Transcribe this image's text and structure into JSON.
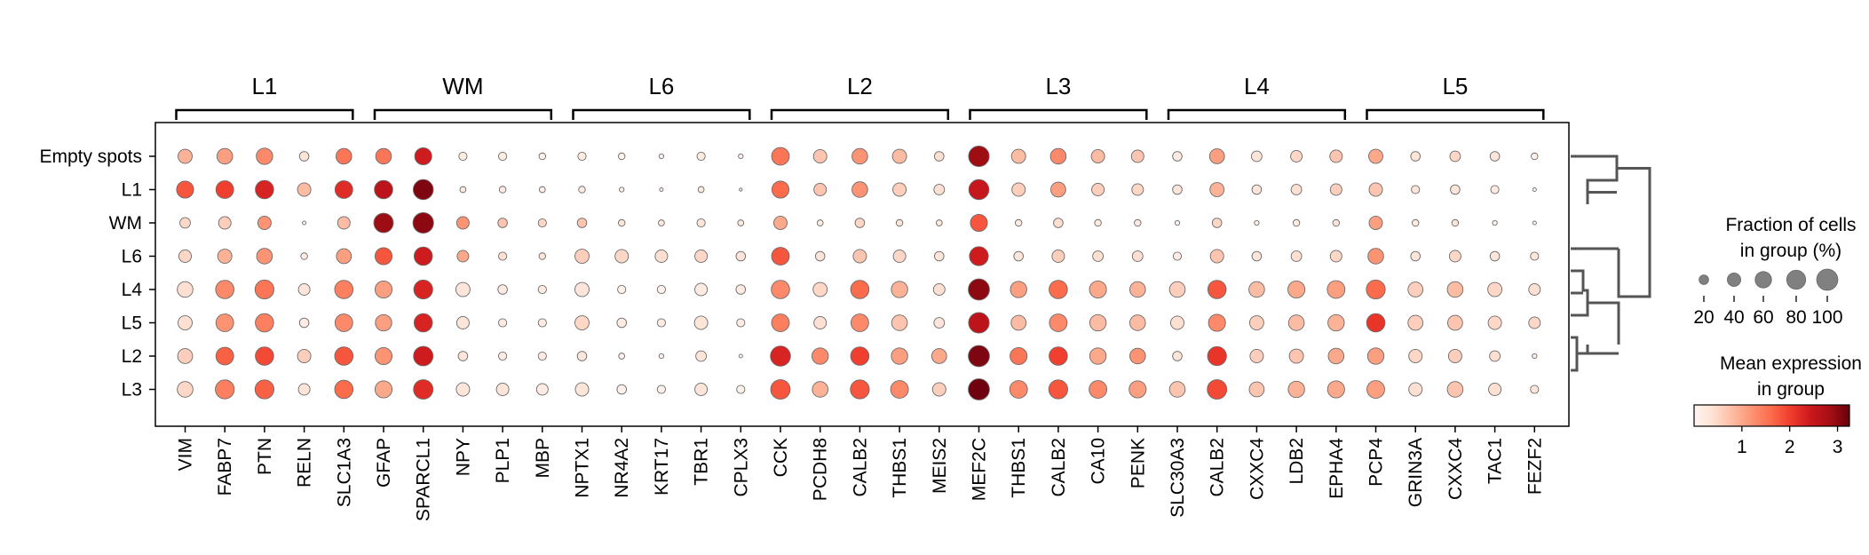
{
  "chart_data": {
    "type": "dotplot",
    "rows": [
      "Empty spots",
      "L1",
      "WM",
      "L6",
      "L4",
      "L5",
      "L2",
      "L3"
    ],
    "gene_groups": [
      {
        "label": "L1",
        "genes": [
          "VIM",
          "FABP7",
          "PTN",
          "RELN",
          "SLC1A3"
        ]
      },
      {
        "label": "WM",
        "genes": [
          "GFAP",
          "SPARCL1",
          "NPY",
          "PLP1",
          "MBP"
        ]
      },
      {
        "label": "L6",
        "genes": [
          "NPTX1",
          "NR4A2",
          "KRT17",
          "TBR1",
          "CPLX3"
        ]
      },
      {
        "label": "L2",
        "genes": [
          "CCK",
          "PCDH8",
          "CALB2",
          "THBS1",
          "MEIS2"
        ]
      },
      {
        "label": "L3",
        "genes": [
          "MEF2C",
          "THBS1",
          "CALB2",
          "CA10",
          "PENK"
        ]
      },
      {
        "label": "L4",
        "genes": [
          "SLC30A3",
          "CALB2",
          "CXXC4",
          "LDB2",
          "EPHA4"
        ]
      },
      {
        "label": "L5",
        "genes": [
          "PCP4",
          "GRIN3A",
          "CXXC4",
          "TAC1",
          "FEZF2"
        ]
      }
    ],
    "fraction": [
      [
        45,
        55,
        60,
        20,
        55,
        55,
        65,
        15,
        15,
        10,
        15,
        10,
        5,
        15,
        5,
        70,
        40,
        55,
        45,
        20,
        95,
        45,
        55,
        40,
        35,
        20,
        50,
        25,
        30,
        35,
        45,
        20,
        25,
        20,
        10
      ],
      [
        65,
        70,
        75,
        40,
        70,
        75,
        90,
        8,
        10,
        8,
        10,
        5,
        3,
        8,
        2,
        65,
        35,
        55,
        40,
        25,
        90,
        40,
        50,
        35,
        30,
        20,
        45,
        20,
        25,
        30,
        40,
        15,
        20,
        15,
        3
      ],
      [
        25,
        35,
        40,
        3,
        35,
        85,
        95,
        35,
        20,
        15,
        20,
        10,
        8,
        15,
        8,
        40,
        8,
        20,
        10,
        8,
        65,
        10,
        20,
        10,
        10,
        5,
        20,
        5,
        10,
        10,
        40,
        10,
        10,
        5,
        3
      ],
      [
        35,
        45,
        55,
        10,
        50,
        65,
        75,
        30,
        15,
        10,
        45,
        40,
        35,
        35,
        20,
        70,
        20,
        40,
        35,
        20,
        80,
        20,
        35,
        25,
        25,
        15,
        40,
        20,
        25,
        30,
        55,
        20,
        30,
        20,
        15
      ],
      [
        55,
        75,
        80,
        30,
        75,
        65,
        80,
        45,
        20,
        15,
        45,
        15,
        15,
        35,
        20,
        75,
        45,
        75,
        60,
        30,
        100,
        60,
        75,
        65,
        55,
        55,
        75,
        55,
        65,
        70,
        80,
        50,
        55,
        45,
        30
      ],
      [
        45,
        70,
        75,
        20,
        70,
        60,
        75,
        35,
        15,
        15,
        45,
        20,
        15,
        40,
        15,
        70,
        35,
        70,
        55,
        25,
        95,
        50,
        70,
        60,
        55,
        40,
        65,
        45,
        55,
        60,
        75,
        50,
        50,
        40,
        30
      ],
      [
        50,
        70,
        75,
        40,
        75,
        65,
        85,
        20,
        15,
        15,
        20,
        8,
        5,
        25,
        3,
        90,
        60,
        75,
        60,
        50,
        100,
        65,
        75,
        60,
        55,
        20,
        80,
        40,
        45,
        55,
        60,
        40,
        40,
        25,
        5
      ],
      [
        55,
        80,
        80,
        30,
        75,
        65,
        85,
        40,
        35,
        30,
        40,
        20,
        15,
        35,
        15,
        85,
        55,
        80,
        70,
        40,
        100,
        70,
        80,
        70,
        65,
        55,
        85,
        50,
        60,
        65,
        70,
        40,
        55,
        35,
        15
      ]
    ],
    "expression": [
      [
        0.9,
        1.1,
        1.3,
        0.3,
        1.5,
        1.5,
        2.4,
        0.2,
        0.2,
        0.1,
        0.2,
        0.1,
        0.1,
        0.2,
        0.1,
        1.5,
        0.7,
        1.2,
        0.8,
        0.4,
        2.9,
        0.8,
        1.3,
        0.8,
        0.7,
        0.2,
        1.1,
        0.3,
        0.5,
        0.7,
        1.0,
        0.3,
        0.5,
        0.3,
        0.1
      ],
      [
        1.8,
        2.0,
        2.3,
        0.8,
        2.2,
        2.6,
        3.1,
        0.2,
        0.2,
        0.1,
        0.2,
        0.1,
        0.1,
        0.2,
        0.1,
        1.6,
        0.7,
        1.2,
        0.6,
        0.4,
        2.5,
        0.6,
        1.1,
        0.6,
        0.5,
        0.3,
        0.9,
        0.3,
        0.4,
        0.6,
        0.7,
        0.3,
        0.3,
        0.2,
        0.1
      ],
      [
        0.5,
        0.6,
        1.2,
        0.1,
        0.8,
        2.9,
        3.0,
        1.2,
        0.7,
        0.5,
        0.7,
        0.3,
        0.2,
        0.3,
        0.2,
        1.0,
        0.2,
        0.5,
        0.3,
        0.2,
        1.8,
        0.2,
        0.4,
        0.2,
        0.2,
        0.1,
        0.5,
        0.1,
        0.2,
        0.3,
        1.1,
        0.2,
        0.3,
        0.1,
        0.1
      ],
      [
        0.5,
        0.9,
        1.2,
        0.2,
        1.1,
        1.8,
        2.4,
        1.0,
        0.4,
        0.3,
        0.6,
        0.5,
        0.4,
        0.5,
        0.3,
        1.8,
        0.3,
        0.7,
        0.5,
        0.3,
        2.4,
        0.3,
        0.6,
        0.4,
        0.4,
        0.2,
        0.7,
        0.3,
        0.4,
        0.5,
        1.2,
        0.3,
        0.5,
        0.3,
        0.3
      ],
      [
        0.4,
        1.3,
        1.5,
        0.3,
        1.4,
        1.1,
        2.3,
        0.3,
        0.2,
        0.2,
        0.3,
        0.1,
        0.1,
        0.2,
        0.2,
        1.3,
        0.5,
        1.6,
        0.9,
        0.4,
        3.0,
        1.1,
        1.6,
        1.0,
        0.9,
        0.6,
        1.8,
        0.8,
        1.0,
        1.1,
        1.6,
        0.6,
        0.8,
        0.5,
        0.4
      ],
      [
        0.4,
        1.2,
        1.4,
        0.2,
        1.3,
        1.1,
        2.3,
        0.3,
        0.2,
        0.2,
        0.5,
        0.2,
        0.2,
        0.3,
        0.2,
        1.4,
        0.4,
        1.3,
        0.7,
        0.3,
        2.6,
        0.8,
        1.3,
        0.8,
        0.8,
        0.4,
        1.3,
        0.6,
        0.8,
        0.9,
        2.1,
        0.6,
        0.7,
        0.5,
        0.5
      ],
      [
        0.6,
        1.7,
        1.9,
        0.6,
        1.8,
        1.2,
        2.4,
        0.3,
        0.2,
        0.2,
        0.3,
        0.1,
        0.1,
        0.3,
        0.1,
        2.3,
        1.3,
        2.0,
        1.1,
        1.0,
        3.1,
        1.5,
        2.0,
        1.0,
        1.2,
        0.3,
        2.1,
        0.6,
        0.7,
        1.0,
        1.1,
        0.5,
        0.6,
        0.4,
        0.2
      ],
      [
        0.5,
        1.4,
        1.7,
        0.3,
        1.6,
        1.0,
        2.2,
        0.3,
        0.3,
        0.2,
        0.3,
        0.1,
        0.1,
        0.3,
        0.1,
        1.8,
        0.9,
        1.8,
        1.3,
        0.6,
        3.2,
        1.3,
        1.8,
        1.3,
        1.1,
        0.7,
        1.9,
        0.7,
        0.9,
        1.0,
        1.1,
        0.4,
        0.7,
        0.4,
        0.3
      ]
    ],
    "legend_size": {
      "title_line1": "Fraction of cells",
      "title_line2": "in group (%)",
      "values": [
        20,
        40,
        60,
        80,
        100
      ],
      "labels": [
        "20",
        "40",
        "60",
        "80",
        "100"
      ]
    },
    "legend_color": {
      "title_line1": "Mean expression",
      "title_line2": "in group",
      "range": [
        0,
        3.25
      ],
      "ticks": [
        1,
        2,
        3
      ],
      "tick_labels": [
        "1",
        "2",
        "3"
      ],
      "colormap": "Reds"
    },
    "dendrogram": "right"
  }
}
